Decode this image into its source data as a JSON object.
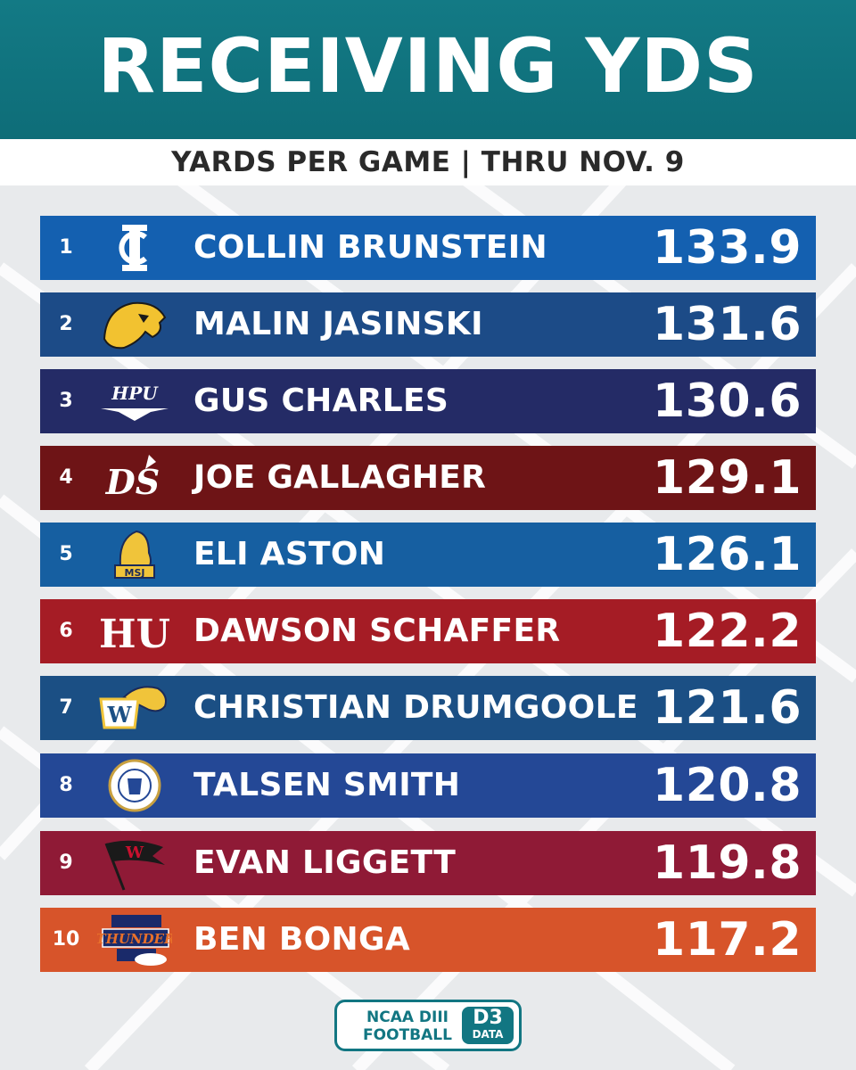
{
  "header": {
    "title": "RECEIVING YDS",
    "subtitle": "YARDS PER GAME  |  THRU NOV. 9"
  },
  "rankings": [
    {
      "rank": "1",
      "name": "COLLIN BRUNSTEIN",
      "value": "133.9",
      "color": "#1460b0",
      "logo": "ic-logo-icon"
    },
    {
      "rank": "2",
      "name": "MALIN JASINSKI",
      "value": "131.6",
      "color": "#1c4b87",
      "logo": "panther-logo-icon"
    },
    {
      "rank": "3",
      "name": "GUS CHARLES",
      "value": "130.6",
      "color": "#242b66",
      "logo": "hpu-logo-icon"
    },
    {
      "rank": "4",
      "name": "JOE GALLAGHER",
      "value": "129.1",
      "color": "#6e1416",
      "logo": "ds-axe-logo-icon"
    },
    {
      "rank": "5",
      "name": "ELI ASTON",
      "value": "126.1",
      "color": "#165fa1",
      "logo": "msj-lion-logo-icon"
    },
    {
      "rank": "6",
      "name": "DAWSON SCHAFFER",
      "value": "122.2",
      "color": "#a51c25",
      "logo": "hu-logo-icon"
    },
    {
      "rank": "7",
      "name": "CHRISTIAN DRUMGOOLE",
      "value": "121.6",
      "color": "#1b4f84",
      "logo": "w-eagle-logo-icon"
    },
    {
      "rank": "8",
      "name": "TALSEN SMITH",
      "value": "120.8",
      "color": "#244896",
      "logo": "merchant-marine-seal-icon"
    },
    {
      "rank": "9",
      "name": "EVAN LIGGETT",
      "value": "119.8",
      "color": "#8f1a36",
      "logo": "w-flag-logo-icon"
    },
    {
      "rank": "10",
      "name": "BEN BONGA",
      "value": "117.2",
      "color": "#d7542a",
      "logo": "thunder-logo-icon"
    }
  ],
  "footer": {
    "brand_line1": "NCAA DIII",
    "brand_line2": "FOOTBALL",
    "badge_top": "D3",
    "badge_bottom": "DATA"
  }
}
